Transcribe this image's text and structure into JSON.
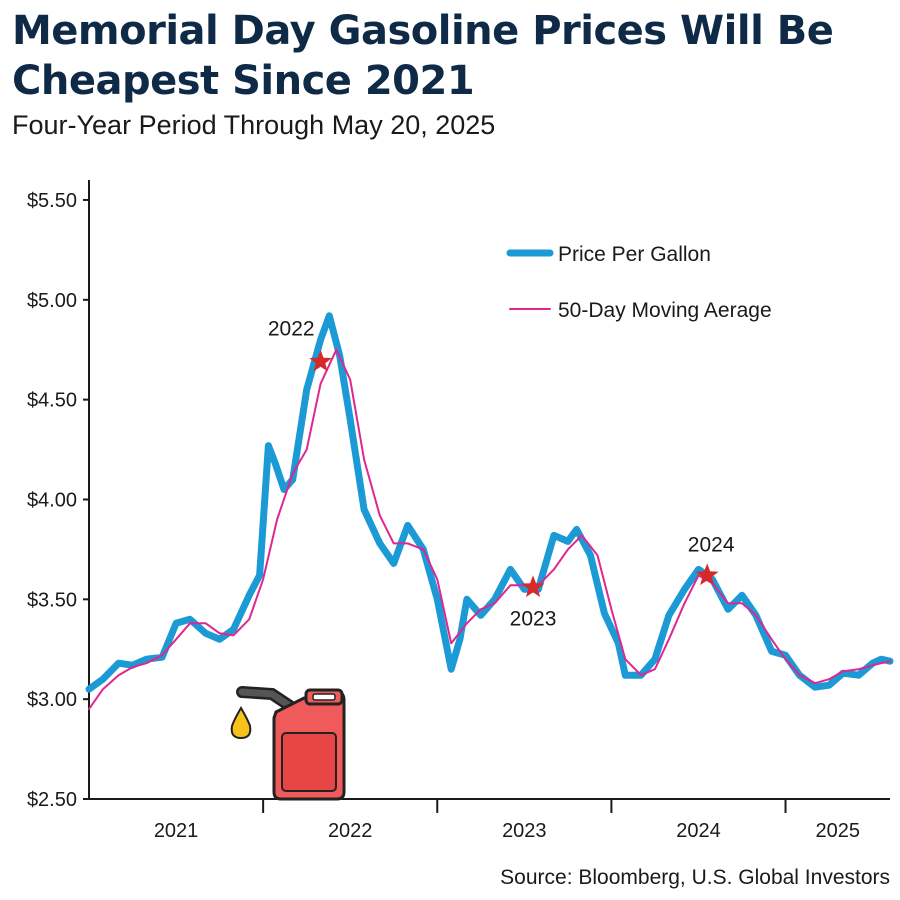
{
  "chart_data": {
    "type": "line",
    "title": "Memorial Day Gasoline Prices Will Be Cheapest Since 2021",
    "subtitle": "Four-Year Period Through May 20, 2025",
    "source": "Source: Bloomberg, U.S. Global Investors",
    "ylim": [
      2.5,
      5.6
    ],
    "yticks": [
      {
        "v": 2.5,
        "label": "$2.50"
      },
      {
        "v": 3.0,
        "label": "$3.00"
      },
      {
        "v": 3.5,
        "label": "$3.50"
      },
      {
        "v": 4.0,
        "label": "$4.00"
      },
      {
        "v": 4.5,
        "label": "$4.50"
      },
      {
        "v": 5.0,
        "label": "$5.00"
      },
      {
        "v": 5.5,
        "label": "$5.50"
      }
    ],
    "xlim": [
      2021.0,
      2025.6
    ],
    "xtick_marks": [
      2022.0,
      2023.0,
      2024.0,
      2025.0
    ],
    "xlabels": [
      {
        "x": 2021.5,
        "label": "2021"
      },
      {
        "x": 2022.5,
        "label": "2022"
      },
      {
        "x": 2023.5,
        "label": "2023"
      },
      {
        "x": 2024.5,
        "label": "2024"
      },
      {
        "x": 2025.3,
        "label": "2025"
      }
    ],
    "legend_position": "top-right",
    "series": [
      {
        "name": "Price Per Gallon",
        "color": "#1b9ad6",
        "points": [
          [
            2021.0,
            3.05
          ],
          [
            2021.08,
            3.1
          ],
          [
            2021.17,
            3.18
          ],
          [
            2021.25,
            3.17
          ],
          [
            2021.33,
            3.2
          ],
          [
            2021.42,
            3.21
          ],
          [
            2021.5,
            3.38
          ],
          [
            2021.58,
            3.4
          ],
          [
            2021.67,
            3.33
          ],
          [
            2021.75,
            3.3
          ],
          [
            2021.83,
            3.35
          ],
          [
            2021.92,
            3.52
          ],
          [
            2021.98,
            3.62
          ],
          [
            2022.03,
            4.27
          ],
          [
            2022.07,
            4.18
          ],
          [
            2022.12,
            4.05
          ],
          [
            2022.17,
            4.1
          ],
          [
            2022.25,
            4.55
          ],
          [
            2022.33,
            4.8
          ],
          [
            2022.38,
            4.92
          ],
          [
            2022.44,
            4.72
          ],
          [
            2022.5,
            4.4
          ],
          [
            2022.58,
            3.95
          ],
          [
            2022.67,
            3.78
          ],
          [
            2022.75,
            3.68
          ],
          [
            2022.83,
            3.87
          ],
          [
            2022.92,
            3.75
          ],
          [
            2023.0,
            3.5
          ],
          [
            2023.08,
            3.15
          ],
          [
            2023.13,
            3.3
          ],
          [
            2023.17,
            3.5
          ],
          [
            2023.25,
            3.42
          ],
          [
            2023.33,
            3.5
          ],
          [
            2023.42,
            3.65
          ],
          [
            2023.5,
            3.55
          ],
          [
            2023.58,
            3.55
          ],
          [
            2023.67,
            3.82
          ],
          [
            2023.75,
            3.79
          ],
          [
            2023.8,
            3.85
          ],
          [
            2023.88,
            3.72
          ],
          [
            2023.96,
            3.43
          ],
          [
            2024.04,
            3.28
          ],
          [
            2024.08,
            3.12
          ],
          [
            2024.17,
            3.12
          ],
          [
            2024.25,
            3.2
          ],
          [
            2024.33,
            3.42
          ],
          [
            2024.42,
            3.55
          ],
          [
            2024.5,
            3.65
          ],
          [
            2024.58,
            3.6
          ],
          [
            2024.67,
            3.45
          ],
          [
            2024.75,
            3.52
          ],
          [
            2024.83,
            3.42
          ],
          [
            2024.92,
            3.24
          ],
          [
            2025.0,
            3.22
          ],
          [
            2025.08,
            3.12
          ],
          [
            2025.17,
            3.06
          ],
          [
            2025.25,
            3.07
          ],
          [
            2025.33,
            3.13
          ],
          [
            2025.42,
            3.12
          ],
          [
            2025.5,
            3.18
          ],
          [
            2025.55,
            3.2
          ],
          [
            2025.6,
            3.19
          ]
        ]
      },
      {
        "name": "50-Day Moving Aerage",
        "color": "#e0268f",
        "points": [
          [
            2021.0,
            2.95
          ],
          [
            2021.08,
            3.05
          ],
          [
            2021.17,
            3.12
          ],
          [
            2021.25,
            3.16
          ],
          [
            2021.33,
            3.18
          ],
          [
            2021.42,
            3.22
          ],
          [
            2021.5,
            3.3
          ],
          [
            2021.58,
            3.38
          ],
          [
            2021.67,
            3.38
          ],
          [
            2021.75,
            3.33
          ],
          [
            2021.83,
            3.32
          ],
          [
            2021.92,
            3.4
          ],
          [
            2022.0,
            3.6
          ],
          [
            2022.08,
            3.9
          ],
          [
            2022.17,
            4.13
          ],
          [
            2022.25,
            4.25
          ],
          [
            2022.33,
            4.58
          ],
          [
            2022.42,
            4.75
          ],
          [
            2022.5,
            4.6
          ],
          [
            2022.58,
            4.2
          ],
          [
            2022.67,
            3.92
          ],
          [
            2022.75,
            3.78
          ],
          [
            2022.83,
            3.78
          ],
          [
            2022.92,
            3.75
          ],
          [
            2023.0,
            3.6
          ],
          [
            2023.08,
            3.28
          ],
          [
            2023.17,
            3.38
          ],
          [
            2023.25,
            3.45
          ],
          [
            2023.33,
            3.48
          ],
          [
            2023.42,
            3.57
          ],
          [
            2023.5,
            3.57
          ],
          [
            2023.58,
            3.57
          ],
          [
            2023.67,
            3.65
          ],
          [
            2023.75,
            3.75
          ],
          [
            2023.83,
            3.82
          ],
          [
            2023.92,
            3.72
          ],
          [
            2024.0,
            3.45
          ],
          [
            2024.08,
            3.2
          ],
          [
            2024.17,
            3.12
          ],
          [
            2024.25,
            3.15
          ],
          [
            2024.33,
            3.3
          ],
          [
            2024.42,
            3.48
          ],
          [
            2024.5,
            3.62
          ],
          [
            2024.58,
            3.58
          ],
          [
            2024.67,
            3.48
          ],
          [
            2024.75,
            3.48
          ],
          [
            2024.83,
            3.42
          ],
          [
            2024.92,
            3.3
          ],
          [
            2025.0,
            3.2
          ],
          [
            2025.08,
            3.12
          ],
          [
            2025.17,
            3.08
          ],
          [
            2025.25,
            3.1
          ],
          [
            2025.33,
            3.14
          ],
          [
            2025.42,
            3.15
          ],
          [
            2025.5,
            3.17
          ],
          [
            2025.6,
            3.19
          ]
        ]
      }
    ],
    "annotations": [
      {
        "x": 2022.33,
        "y": 4.69,
        "label": "2022",
        "label_pos": "above-left"
      },
      {
        "x": 2023.55,
        "y": 3.56,
        "label": "2023",
        "label_pos": "below"
      },
      {
        "x": 2024.55,
        "y": 3.62,
        "label": "2024",
        "label_pos": "above"
      }
    ],
    "colors": {
      "title": "#0f2a47",
      "star": "#d42a2a",
      "can_body": "#f05a5a",
      "can_outline": "#222222",
      "nozzle": "#555555",
      "drop": "#f7c21b"
    },
    "decoration": {
      "icon": "gas-can-icon"
    }
  }
}
